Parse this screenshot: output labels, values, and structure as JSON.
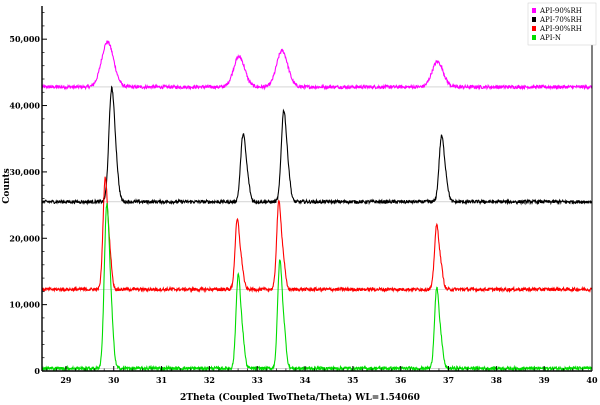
{
  "chart_data": {
    "type": "line",
    "xlabel": "2Theta (Coupled TwoTheta/Theta) WL=1.54060",
    "ylabel": "Counts",
    "xlim": [
      28.5,
      40.0
    ],
    "ylim": [
      0,
      55000
    ],
    "x_ticks": [
      29,
      30,
      31,
      32,
      33,
      34,
      35,
      36,
      37,
      38,
      39,
      40
    ],
    "y_ticks": [
      0,
      10000,
      20000,
      30000,
      40000,
      50000
    ],
    "y_tick_labels": [
      "0",
      "10,000",
      "20,000",
      "30,000",
      "40,000",
      "50,000"
    ],
    "grid": false,
    "legend_position": "top-right",
    "series": [
      {
        "name": "API-90%RH",
        "color": "#ff00ff",
        "baseline": 42800,
        "peaks": [
          {
            "x": 29.85,
            "height": 5300,
            "width": 0.12
          },
          {
            "x": 32.6,
            "height": 3600,
            "width": 0.11
          },
          {
            "x": 33.5,
            "height": 4300,
            "width": 0.11
          },
          {
            "x": 36.75,
            "height": 3000,
            "width": 0.11
          }
        ]
      },
      {
        "name": "API-70%RH",
        "color": "#000000",
        "baseline": 25500,
        "peaks": [
          {
            "x": 29.95,
            "height": 15500,
            "width": 0.055
          },
          {
            "x": 32.7,
            "height": 9500,
            "width": 0.05
          },
          {
            "x": 33.55,
            "height": 12800,
            "width": 0.05
          },
          {
            "x": 36.85,
            "height": 9200,
            "width": 0.05
          }
        ]
      },
      {
        "name": "API-90%RH",
        "color": "#ff0000",
        "baseline": 12300,
        "peaks": [
          {
            "x": 29.82,
            "height": 16000,
            "width": 0.045
          },
          {
            "x": 32.58,
            "height": 10000,
            "width": 0.045
          },
          {
            "x": 33.45,
            "height": 12600,
            "width": 0.045
          },
          {
            "x": 36.75,
            "height": 9200,
            "width": 0.045
          }
        ]
      },
      {
        "name": "API-N",
        "color": "#00dd00",
        "baseline": 400,
        "peaks": [
          {
            "x": 29.85,
            "height": 23000,
            "width": 0.05
          },
          {
            "x": 32.6,
            "height": 13500,
            "width": 0.045
          },
          {
            "x": 33.47,
            "height": 15500,
            "width": 0.045
          },
          {
            "x": 36.75,
            "height": 11500,
            "width": 0.045
          }
        ]
      }
    ]
  }
}
